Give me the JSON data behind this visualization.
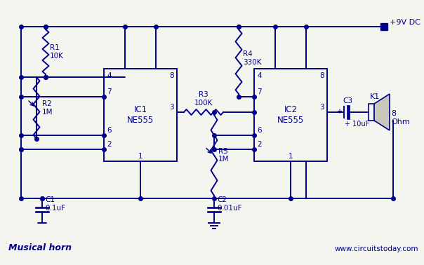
{
  "bg_color": "#f5f5f0",
  "line_color": "#00008B",
  "title": "Musical horn",
  "website": "www.circuitstoday.com",
  "ic1_label": "IC1\nNE555",
  "ic2_label": "IC2\nNE555",
  "r1_label": "R1\n10K",
  "r2_label": "R2\n1M",
  "r3_label": "R3\n100K",
  "r4_label": "R4\n330K",
  "r5_label": "R5\n1M",
  "c1_label": "C1\n0.1uF",
  "c2_label": "C2\n0.01uF",
  "c3_label": "C3",
  "c3_val": "+ 10uF",
  "vcc_label": "+9V DC",
  "k1_label": "K1",
  "ohm_label": "8\nOhm"
}
